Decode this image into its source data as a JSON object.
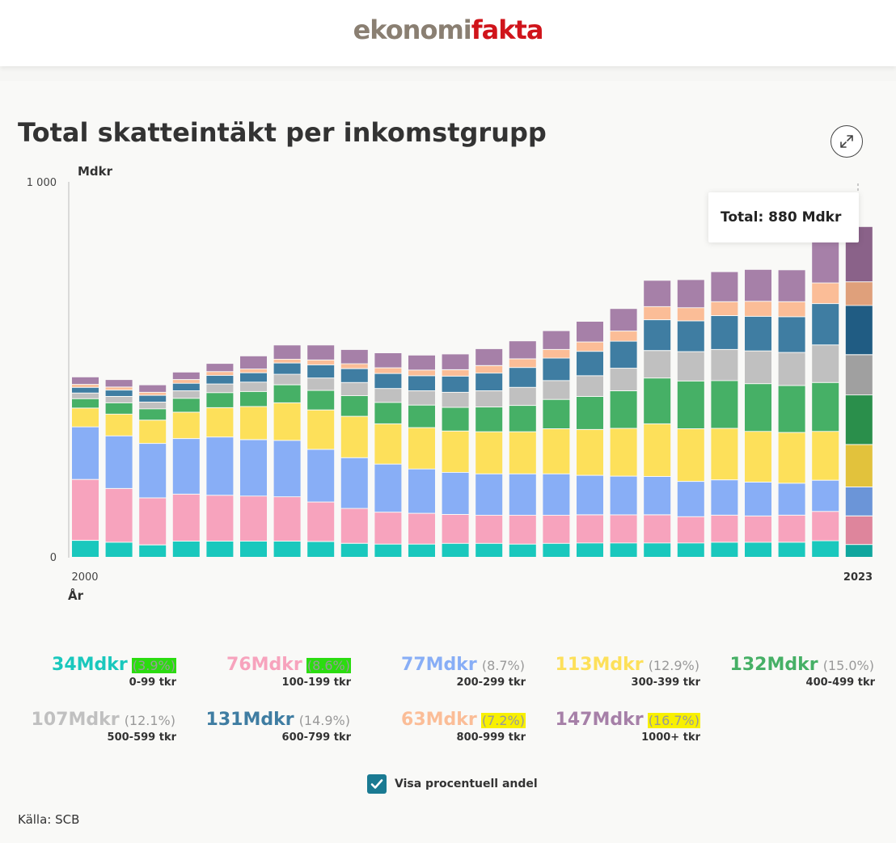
{
  "header": {
    "logo_part1": "ekonomi",
    "logo_part2": "fakta"
  },
  "chart_title": "Total skatteintäkt per inkomstgrupp",
  "chart_data": {
    "type": "bar",
    "stacked": true,
    "title": "Total skatteintäkt per inkomstgrupp",
    "ylabel": "Mdkr",
    "xlabel": "År",
    "ylim": [
      0,
      1000
    ],
    "y_tick_labels": [
      "1 000",
      "0"
    ],
    "x_tick_labels": [
      "2000",
      "2023"
    ],
    "categories": [
      "2000",
      "2001",
      "2002",
      "2003",
      "2004",
      "2005",
      "2006",
      "2007",
      "2008",
      "2009",
      "2010",
      "2011",
      "2012",
      "2013",
      "2014",
      "2015",
      "2016",
      "2017",
      "2018",
      "2019",
      "2020",
      "2021",
      "2022",
      "2023"
    ],
    "series": [
      {
        "name": "0-99 tkr",
        "color": "#1ac8bd",
        "values": [
          45,
          40,
          33,
          43,
          43,
          43,
          43,
          42,
          37,
          35,
          35,
          37,
          37,
          35,
          37,
          38,
          38,
          38,
          38,
          40,
          40,
          40,
          44,
          34
        ]
      },
      {
        "name": "100-199 tkr",
        "color": "#f7a3bd",
        "values": [
          162,
          143,
          125,
          125,
          122,
          120,
          118,
          105,
          93,
          85,
          82,
          77,
          75,
          77,
          75,
          75,
          75,
          75,
          70,
          72,
          70,
          72,
          78,
          76
        ]
      },
      {
        "name": "200-299 tkr",
        "color": "#88aef6",
        "values": [
          140,
          140,
          145,
          148,
          155,
          150,
          150,
          140,
          135,
          128,
          118,
          112,
          110,
          110,
          110,
          105,
          103,
          102,
          94,
          94,
          90,
          85,
          83,
          77
        ]
      },
      {
        "name": "300-399 tkr",
        "color": "#fde05a",
        "values": [
          50,
          58,
          62,
          70,
          78,
          88,
          100,
          105,
          110,
          107,
          110,
          110,
          112,
          112,
          120,
          122,
          127,
          140,
          140,
          137,
          135,
          135,
          130,
          113
        ]
      },
      {
        "name": "400-499 tkr",
        "color": "#46b066",
        "values": [
          25,
          30,
          30,
          37,
          40,
          40,
          48,
          52,
          55,
          57,
          60,
          63,
          66,
          70,
          78,
          88,
          100,
          122,
          127,
          127,
          127,
          125,
          130,
          132
        ]
      },
      {
        "name": "500-599 tkr",
        "color": "#c0c0c0",
        "values": [
          15,
          17,
          18,
          20,
          23,
          25,
          28,
          33,
          35,
          37,
          38,
          40,
          43,
          48,
          50,
          55,
          60,
          73,
          78,
          83,
          87,
          88,
          100,
          107
        ]
      },
      {
        "name": "600-799 tkr",
        "color": "#3f7da2",
        "values": [
          15,
          17,
          18,
          20,
          23,
          25,
          30,
          35,
          37,
          40,
          40,
          43,
          47,
          53,
          60,
          65,
          72,
          82,
          82,
          90,
          92,
          95,
          110,
          131
        ]
      },
      {
        "name": "800-999 tkr",
        "color": "#fbbd97",
        "values": [
          8,
          8,
          8,
          10,
          10,
          10,
          10,
          13,
          13,
          15,
          15,
          17,
          20,
          23,
          23,
          25,
          27,
          35,
          35,
          37,
          40,
          40,
          55,
          63
        ]
      },
      {
        "name": "1000+ tkr",
        "color": "#a680a8",
        "values": [
          20,
          20,
          20,
          20,
          22,
          35,
          38,
          40,
          38,
          40,
          40,
          42,
          45,
          48,
          50,
          55,
          60,
          70,
          75,
          80,
          85,
          85,
          115,
          147
        ]
      }
    ],
    "last_bar_colors": [
      "#10a69e",
      "#de859c",
      "#6b95d8",
      "#e2c23c",
      "#2a8f4b",
      "#a0a0a0",
      "#205c83",
      "#dfa07b",
      "#8a6289"
    ],
    "tooltip": "Total: 880 Mdkr",
    "legend_placement": "bottom"
  },
  "legend": [
    {
      "value": "34Mdkr",
      "pct": "(3.9%)",
      "group": "0-99 tkr",
      "color": "#1ac8bd",
      "highlight": "#2bdc10"
    },
    {
      "value": "76Mdkr",
      "pct": "(8.6%)",
      "group": "100-199 tkr",
      "color": "#f7a3bd",
      "highlight": "#2bdc10"
    },
    {
      "value": "77Mdkr",
      "pct": "(8.7%)",
      "group": "200-299 tkr",
      "color": "#88aef6",
      "highlight": ""
    },
    {
      "value": "113Mdkr",
      "pct": "(12.9%)",
      "group": "300-399 tkr",
      "color": "#fde05a",
      "highlight": ""
    },
    {
      "value": "132Mdkr",
      "pct": "(15.0%)",
      "group": "400-499 tkr",
      "color": "#46b066",
      "highlight": ""
    },
    {
      "value": "107Mdkr",
      "pct": "(12.1%)",
      "group": "500-599 tkr",
      "color": "#c0c0c0",
      "highlight": ""
    },
    {
      "value": "131Mdkr",
      "pct": "(14.9%)",
      "group": "600-799 tkr",
      "color": "#3f7da2",
      "highlight": ""
    },
    {
      "value": "63Mdkr",
      "pct": "(7.2%)",
      "group": "800-999 tkr",
      "color": "#fbbd97",
      "highlight": "#f8f000"
    },
    {
      "value": "147Mdkr",
      "pct": "(16.7%)",
      "group": "1000+ tkr",
      "color": "#a680a8",
      "highlight": "#f8f000"
    }
  ],
  "checkbox": {
    "label": "Visa procentuell andel",
    "checked": true
  },
  "source": "Källa: SCB"
}
